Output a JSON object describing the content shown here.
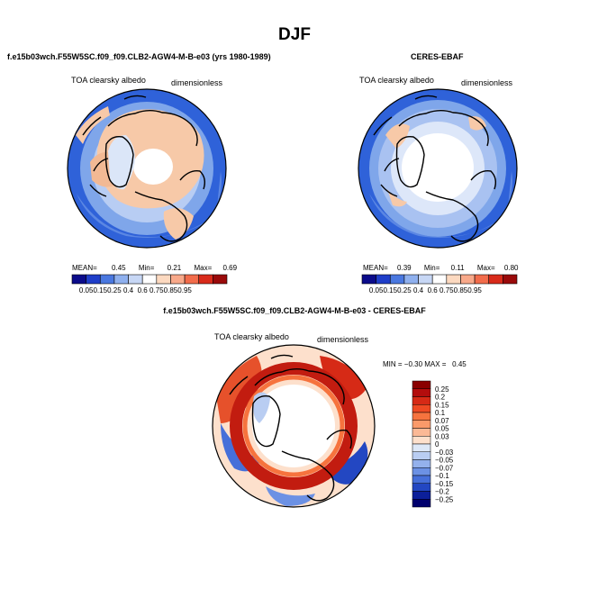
{
  "season": "DJF",
  "colors": {
    "ocean_blue": "#2f62d9",
    "light_blue": "#7fa6ea",
    "pale_blue": "#cfdcf5",
    "land_peach": "#f7c9a8",
    "white": "#ffffff",
    "dark_red": "#b40000"
  },
  "panels": {
    "model": {
      "title": "f.e15b03wch.F55W5SC.f09_f09.CLB2-AGW4-M-B-e03 (yrs 1980-1989)",
      "left_label": "TOA clearsky albedo",
      "right_label": "dimensionless",
      "stats": {
        "mean_label": "MEAN=",
        "mean": "0.45",
        "min_label": "Min=",
        "min": "0.21",
        "max_label": "Max=",
        "max": "0.69"
      }
    },
    "obs": {
      "title": "CERES-EBAF",
      "left_label": "TOA clearsky albedo",
      "right_label": "dimensionless",
      "stats": {
        "mean_label": "MEAN=",
        "mean": "0.39",
        "min_label": "Min=",
        "min": "0.11",
        "max_label": "Max=",
        "max": "0.80"
      }
    },
    "diff": {
      "title": "f.e15b03wch.F55W5SC.f09_f09.CLB2-AGW4-M-B-e03 - CERES-EBAF",
      "left_label": "TOA clearsky albedo",
      "right_label": "dimensionless",
      "minmax": "MIN = −0.30 MAX =   0.45"
    }
  },
  "chart_data": [
    {
      "type": "heatmap",
      "projection": "north-polar-stereographic",
      "title": "f.e15b03wch.F55W5SC.f09_f09.CLB2-AGW4-M-B-e03 (yrs 1980-1989)",
      "variable": "TOA clearsky albedo",
      "units": "dimensionless",
      "mean": 0.45,
      "min": 0.21,
      "max": 0.69,
      "colorbar_levels": [
        "0.05",
        "0.15",
        "0.25",
        "0.4",
        "0.6",
        "0.75",
        "0.85",
        "0.95"
      ],
      "colorbar_colors": [
        "#0b0b8a",
        "#1f3ec9",
        "#4a78e0",
        "#8fb0ee",
        "#c7d7f5",
        "#ffffff",
        "#fcd9c0",
        "#f8a98a",
        "#f26c4b",
        "#d92b1b",
        "#9a0a0a"
      ]
    },
    {
      "type": "heatmap",
      "projection": "north-polar-stereographic",
      "title": "CERES-EBAF",
      "variable": "TOA clearsky albedo",
      "units": "dimensionless",
      "mean": 0.39,
      "min": 0.11,
      "max": 0.8,
      "colorbar_levels": [
        "0.05",
        "0.15",
        "0.25",
        "0.4",
        "0.6",
        "0.75",
        "0.85",
        "0.95"
      ],
      "colorbar_colors": [
        "#0b0b8a",
        "#1f3ec9",
        "#4a78e0",
        "#8fb0ee",
        "#c7d7f5",
        "#ffffff",
        "#fcd9c0",
        "#f8a98a",
        "#f26c4b",
        "#d92b1b",
        "#9a0a0a"
      ]
    },
    {
      "type": "heatmap",
      "projection": "north-polar-stereographic",
      "title": "f.e15b03wch.F55W5SC.f09_f09.CLB2-AGW4-M-B-e03 - CERES-EBAF",
      "variable": "TOA clearsky albedo",
      "units": "dimensionless",
      "min": -0.3,
      "max": 0.45,
      "colorbar_levels": [
        "0.25",
        "0.2",
        "0.15",
        "0.1",
        "0.07",
        "0.05",
        "0.03",
        "0",
        "-0.03",
        "-0.05",
        "-0.07",
        "-0.1",
        "-0.15",
        "-0.2",
        "-0.25"
      ],
      "colorbar_colors": [
        "#8a0000",
        "#b30d0d",
        "#d62a16",
        "#ee4a23",
        "#f6733e",
        "#fa9a6a",
        "#fbb996",
        "#fde0cc",
        "#dde8f8",
        "#b9cdf2",
        "#94b1ec",
        "#6c91e4",
        "#466fd9",
        "#2347c2",
        "#0c1f9a",
        "#00006e"
      ]
    }
  ]
}
